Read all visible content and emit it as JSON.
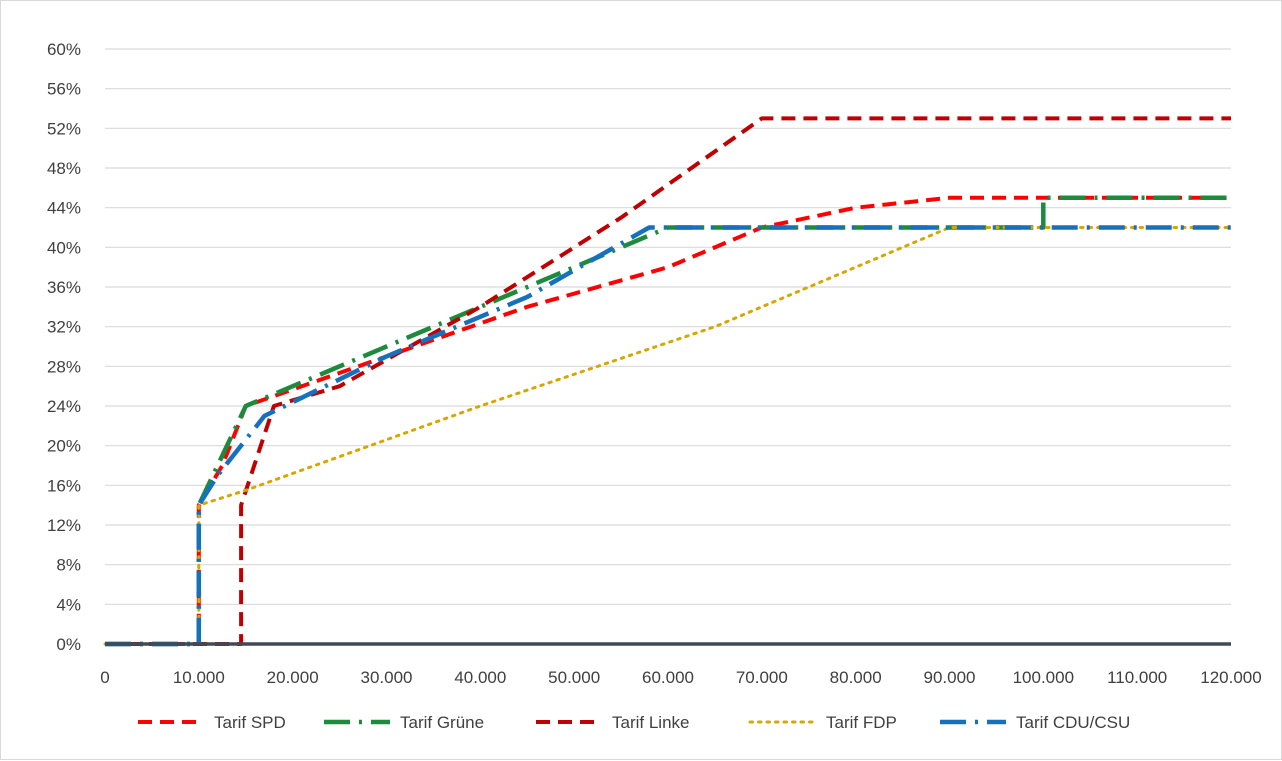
{
  "chart_data": {
    "type": "line",
    "title": "",
    "xlabel": "",
    "ylabel": "",
    "xlim": [
      0,
      120000
    ],
    "ylim": [
      0,
      0.6
    ],
    "x_ticks": [
      0,
      10000,
      20000,
      30000,
      40000,
      50000,
      60000,
      70000,
      80000,
      90000,
      100000,
      110000,
      120000
    ],
    "x_tick_labels": [
      "0",
      "10.000",
      "20.000",
      "30.000",
      "40.000",
      "50.000",
      "60.000",
      "70.000",
      "80.000",
      "90.000",
      "100.000",
      "110.000",
      "120.000"
    ],
    "y_ticks": [
      0,
      0.04,
      0.08,
      0.12,
      0.16,
      0.2,
      0.24,
      0.28,
      0.32,
      0.36,
      0.4,
      0.44,
      0.48,
      0.52,
      0.56,
      0.6
    ],
    "y_tick_labels": [
      "0%",
      "4%",
      "8%",
      "12%",
      "16%",
      "20%",
      "24%",
      "28%",
      "32%",
      "36%",
      "40%",
      "44%",
      "48%",
      "52%",
      "56%",
      "60%"
    ],
    "grid": "horizontal",
    "legend_position": "bottom",
    "series": [
      {
        "name": "Tarif SPD",
        "color": "#ff0000",
        "style": "dash",
        "points": [
          [
            0,
            0
          ],
          [
            10000,
            0
          ],
          [
            10000,
            0.14
          ],
          [
            12500,
            0.18
          ],
          [
            15000,
            0.24
          ],
          [
            30000,
            0.29
          ],
          [
            45000,
            0.34
          ],
          [
            60000,
            0.38
          ],
          [
            70000,
            0.42
          ],
          [
            80000,
            0.44
          ],
          [
            90000,
            0.45
          ],
          [
            120000,
            0.45
          ]
        ]
      },
      {
        "name": "Tarif Grüne",
        "color": "#1e8a3c",
        "style": "longdash-dot",
        "points": [
          [
            0,
            0
          ],
          [
            10000,
            0
          ],
          [
            10000,
            0.14
          ],
          [
            15000,
            0.24
          ],
          [
            20000,
            0.26
          ],
          [
            30000,
            0.3
          ],
          [
            45000,
            0.36
          ],
          [
            60000,
            0.42
          ],
          [
            100000,
            0.42
          ],
          [
            100000,
            0.45
          ],
          [
            120000,
            0.45
          ]
        ]
      },
      {
        "name": "Tarif Linke",
        "color": "#c00000",
        "style": "dash",
        "points": [
          [
            0,
            0
          ],
          [
            14500,
            0
          ],
          [
            14500,
            0.14
          ],
          [
            18000,
            0.24
          ],
          [
            25000,
            0.26
          ],
          [
            40000,
            0.34
          ],
          [
            55000,
            0.43
          ],
          [
            70000,
            0.53
          ],
          [
            120000,
            0.53
          ]
        ]
      },
      {
        "name": "Tarif FDP",
        "color": "#d4a800",
        "style": "dot",
        "points": [
          [
            0,
            0
          ],
          [
            10000,
            0
          ],
          [
            10000,
            0.14
          ],
          [
            15000,
            0.155
          ],
          [
            40000,
            0.24
          ],
          [
            65000,
            0.32
          ],
          [
            90000,
            0.42
          ],
          [
            120000,
            0.42
          ]
        ]
      },
      {
        "name": "Tarif CDU/CSU",
        "color": "#1570be",
        "style": "longdash-dot",
        "points": [
          [
            0,
            0
          ],
          [
            10000,
            0
          ],
          [
            10000,
            0.14
          ],
          [
            12000,
            0.17
          ],
          [
            17000,
            0.23
          ],
          [
            30000,
            0.29
          ],
          [
            45000,
            0.35
          ],
          [
            58000,
            0.42
          ],
          [
            120000,
            0.42
          ]
        ]
      }
    ]
  }
}
